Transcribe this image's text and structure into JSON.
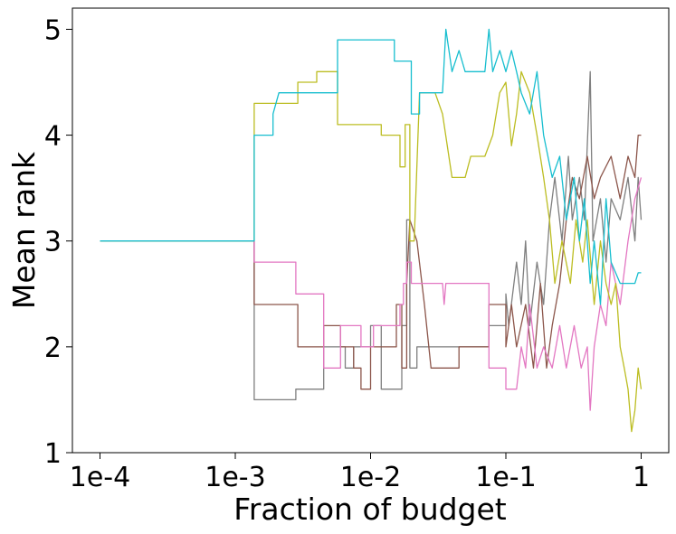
{
  "chart_data": {
    "type": "line",
    "title": "",
    "xlabel": "Fraction of budget",
    "ylabel": "Mean rank",
    "xscale": "log",
    "xlim": [
      6.25e-05,
      1.6
    ],
    "ylim": [
      1,
      5.2
    ],
    "x_ticks": [
      0.0001,
      0.001,
      0.01,
      0.1,
      1
    ],
    "x_tick_labels": [
      "1e-4",
      "1e-3",
      "1e-2",
      "1e-1",
      "1"
    ],
    "y_ticks": [
      1,
      2,
      3,
      4,
      5
    ],
    "y_tick_labels": [
      "1",
      "2",
      "3",
      "4",
      "5"
    ],
    "grid": false,
    "legend": "none",
    "series": [
      {
        "name": "gray",
        "color": "#7f7f7f",
        "points": [
          [
            0.0001,
            3
          ],
          [
            0.00138,
            3
          ],
          [
            0.00138,
            1.5
          ],
          [
            0.0028,
            1.5
          ],
          [
            0.0028,
            1.6
          ],
          [
            0.0045,
            1.6
          ],
          [
            0.0045,
            2.0
          ],
          [
            0.0065,
            2.0
          ],
          [
            0.0065,
            1.8
          ],
          [
            0.0075,
            1.8
          ],
          [
            0.0075,
            2.0
          ],
          [
            0.01,
            2.0
          ],
          [
            0.01,
            2.2
          ],
          [
            0.012,
            2.2
          ],
          [
            0.012,
            1.6
          ],
          [
            0.017,
            1.6
          ],
          [
            0.017,
            2.2
          ],
          [
            0.0185,
            2.2
          ],
          [
            0.0185,
            3.2
          ],
          [
            0.0195,
            3.2
          ],
          [
            0.0195,
            1.8
          ],
          [
            0.022,
            1.8
          ],
          [
            0.022,
            2.0
          ],
          [
            0.075,
            2.0
          ],
          [
            0.075,
            2.2
          ],
          [
            0.1,
            2.2
          ],
          [
            0.1,
            2.5
          ],
          [
            0.105,
            2.2
          ],
          [
            0.12,
            2.8
          ],
          [
            0.13,
            2.4
          ],
          [
            0.14,
            3.0
          ],
          [
            0.15,
            2.2
          ],
          [
            0.17,
            2.8
          ],
          [
            0.19,
            2.4
          ],
          [
            0.21,
            3.2
          ],
          [
            0.23,
            3.6
          ],
          [
            0.26,
            3.0
          ],
          [
            0.29,
            3.8
          ],
          [
            0.31,
            3.2
          ],
          [
            0.35,
            3.6
          ],
          [
            0.38,
            3.2
          ],
          [
            0.42,
            4.6
          ],
          [
            0.44,
            3.0
          ],
          [
            0.5,
            3.4
          ],
          [
            0.55,
            2.8
          ],
          [
            0.6,
            3.4
          ],
          [
            0.7,
            3.2
          ],
          [
            0.8,
            3.6
          ],
          [
            0.9,
            3.0
          ],
          [
            0.95,
            3.6
          ],
          [
            1,
            3.2
          ]
        ]
      },
      {
        "name": "brown",
        "color": "#8c564b",
        "points": [
          [
            0.0001,
            3
          ],
          [
            0.00138,
            3
          ],
          [
            0.00138,
            2.4
          ],
          [
            0.0029,
            2.4
          ],
          [
            0.0029,
            2.0
          ],
          [
            0.0045,
            2.0
          ],
          [
            0.0045,
            2.2
          ],
          [
            0.006,
            2.2
          ],
          [
            0.006,
            2.0
          ],
          [
            0.0075,
            2.0
          ],
          [
            0.0075,
            1.8
          ],
          [
            0.0085,
            1.8
          ],
          [
            0.0085,
            1.6
          ],
          [
            0.01,
            1.6
          ],
          [
            0.01,
            2.0
          ],
          [
            0.0155,
            2.0
          ],
          [
            0.0155,
            2.4
          ],
          [
            0.017,
            2.4
          ],
          [
            0.017,
            1.8
          ],
          [
            0.0185,
            1.8
          ],
          [
            0.0185,
            2.6
          ],
          [
            0.0195,
            3.2
          ],
          [
            0.022,
            3.0
          ],
          [
            0.025,
            2.4
          ],
          [
            0.028,
            1.8
          ],
          [
            0.045,
            1.8
          ],
          [
            0.045,
            2.0
          ],
          [
            0.075,
            2.0
          ],
          [
            0.075,
            2.4
          ],
          [
            0.1,
            2.4
          ],
          [
            0.1,
            2.0
          ],
          [
            0.11,
            2.4
          ],
          [
            0.12,
            2.0
          ],
          [
            0.14,
            2.4
          ],
          [
            0.16,
            1.8
          ],
          [
            0.18,
            2.6
          ],
          [
            0.2,
            1.8
          ],
          [
            0.22,
            2.2
          ],
          [
            0.25,
            2.6
          ],
          [
            0.28,
            3.2
          ],
          [
            0.31,
            3.6
          ],
          [
            0.35,
            3.4
          ],
          [
            0.4,
            3.8
          ],
          [
            0.45,
            3.4
          ],
          [
            0.5,
            3.6
          ],
          [
            0.6,
            3.8
          ],
          [
            0.7,
            3.4
          ],
          [
            0.8,
            3.8
          ],
          [
            0.9,
            3.6
          ],
          [
            0.95,
            4.0
          ],
          [
            1,
            4.0
          ]
        ]
      },
      {
        "name": "pink",
        "color": "#e377c2",
        "points": [
          [
            0.0001,
            3
          ],
          [
            0.00138,
            3
          ],
          [
            0.00138,
            2.8
          ],
          [
            0.0028,
            2.8
          ],
          [
            0.0028,
            2.5
          ],
          [
            0.0045,
            2.5
          ],
          [
            0.0045,
            1.8
          ],
          [
            0.006,
            1.8
          ],
          [
            0.006,
            2.2
          ],
          [
            0.0085,
            2.2
          ],
          [
            0.0085,
            2.0
          ],
          [
            0.0105,
            2.0
          ],
          [
            0.0105,
            2.2
          ],
          [
            0.0165,
            2.2
          ],
          [
            0.0165,
            2.4
          ],
          [
            0.0175,
            2.4
          ],
          [
            0.0175,
            2.6
          ],
          [
            0.0185,
            2.6
          ],
          [
            0.0185,
            2.8
          ],
          [
            0.02,
            2.8
          ],
          [
            0.02,
            2.6
          ],
          [
            0.034,
            2.6
          ],
          [
            0.035,
            2.4
          ],
          [
            0.036,
            2.6
          ],
          [
            0.075,
            2.6
          ],
          [
            0.075,
            1.8
          ],
          [
            0.1,
            1.8
          ],
          [
            0.1,
            1.6
          ],
          [
            0.12,
            1.6
          ],
          [
            0.13,
            2.0
          ],
          [
            0.14,
            1.8
          ],
          [
            0.15,
            2.4
          ],
          [
            0.17,
            1.8
          ],
          [
            0.19,
            2.0
          ],
          [
            0.22,
            1.8
          ],
          [
            0.25,
            2.2
          ],
          [
            0.28,
            1.8
          ],
          [
            0.32,
            2.2
          ],
          [
            0.36,
            1.8
          ],
          [
            0.4,
            2.0
          ],
          [
            0.42,
            1.4
          ],
          [
            0.45,
            2.0
          ],
          [
            0.5,
            2.4
          ],
          [
            0.55,
            2.2
          ],
          [
            0.6,
            2.8
          ],
          [
            0.7,
            2.4
          ],
          [
            0.8,
            3.0
          ],
          [
            0.9,
            3.4
          ],
          [
            1,
            3.6
          ]
        ]
      },
      {
        "name": "olive",
        "color": "#bcbd22",
        "points": [
          [
            0.0001,
            3
          ],
          [
            0.00138,
            3
          ],
          [
            0.00138,
            4.3
          ],
          [
            0.0029,
            4.3
          ],
          [
            0.0029,
            4.5
          ],
          [
            0.004,
            4.5
          ],
          [
            0.004,
            4.6
          ],
          [
            0.0057,
            4.6
          ],
          [
            0.0057,
            4.1
          ],
          [
            0.012,
            4.1
          ],
          [
            0.012,
            4.0
          ],
          [
            0.0165,
            4.0
          ],
          [
            0.0165,
            3.7
          ],
          [
            0.018,
            3.7
          ],
          [
            0.018,
            4.1
          ],
          [
            0.0195,
            4.1
          ],
          [
            0.0195,
            3.0
          ],
          [
            0.021,
            3.0
          ],
          [
            0.023,
            4.4
          ],
          [
            0.03,
            4.4
          ],
          [
            0.034,
            4.2
          ],
          [
            0.04,
            3.6
          ],
          [
            0.05,
            3.6
          ],
          [
            0.055,
            3.8
          ],
          [
            0.07,
            3.8
          ],
          [
            0.08,
            4.0
          ],
          [
            0.09,
            4.4
          ],
          [
            0.1,
            4.5
          ],
          [
            0.11,
            3.9
          ],
          [
            0.12,
            4.2
          ],
          [
            0.13,
            4.6
          ],
          [
            0.15,
            4.4
          ],
          [
            0.17,
            4.0
          ],
          [
            0.19,
            3.6
          ],
          [
            0.21,
            3.2
          ],
          [
            0.23,
            2.6
          ],
          [
            0.26,
            3.0
          ],
          [
            0.3,
            2.6
          ],
          [
            0.33,
            3.2
          ],
          [
            0.37,
            2.8
          ],
          [
            0.4,
            3.2
          ],
          [
            0.45,
            2.4
          ],
          [
            0.5,
            3.0
          ],
          [
            0.55,
            2.6
          ],
          [
            0.6,
            2.4
          ],
          [
            0.65,
            2.6
          ],
          [
            0.7,
            2.0
          ],
          [
            0.75,
            1.8
          ],
          [
            0.8,
            1.6
          ],
          [
            0.85,
            1.2
          ],
          [
            0.9,
            1.4
          ],
          [
            0.95,
            1.8
          ],
          [
            1,
            1.6
          ]
        ]
      },
      {
        "name": "cyan",
        "color": "#17becf",
        "points": [
          [
            0.0001,
            3
          ],
          [
            0.00138,
            3
          ],
          [
            0.00138,
            4.0
          ],
          [
            0.0019,
            4.0
          ],
          [
            0.0019,
            4.2
          ],
          [
            0.0021,
            4.4
          ],
          [
            0.0057,
            4.4
          ],
          [
            0.0057,
            4.9
          ],
          [
            0.015,
            4.9
          ],
          [
            0.015,
            4.7
          ],
          [
            0.02,
            4.7
          ],
          [
            0.02,
            4.2
          ],
          [
            0.023,
            4.2
          ],
          [
            0.023,
            4.4
          ],
          [
            0.034,
            4.4
          ],
          [
            0.036,
            5.0
          ],
          [
            0.04,
            4.6
          ],
          [
            0.045,
            4.8
          ],
          [
            0.05,
            4.6
          ],
          [
            0.07,
            4.6
          ],
          [
            0.075,
            5.0
          ],
          [
            0.08,
            4.6
          ],
          [
            0.09,
            4.8
          ],
          [
            0.1,
            4.6
          ],
          [
            0.11,
            4.8
          ],
          [
            0.12,
            4.6
          ],
          [
            0.13,
            4.4
          ],
          [
            0.15,
            4.2
          ],
          [
            0.17,
            4.6
          ],
          [
            0.19,
            4.0
          ],
          [
            0.22,
            3.6
          ],
          [
            0.25,
            3.8
          ],
          [
            0.28,
            3.2
          ],
          [
            0.32,
            3.6
          ],
          [
            0.35,
            3.0
          ],
          [
            0.38,
            3.4
          ],
          [
            0.42,
            2.6
          ],
          [
            0.45,
            3.0
          ],
          [
            0.5,
            2.4
          ],
          [
            0.55,
            3.4
          ],
          [
            0.6,
            2.8
          ],
          [
            0.7,
            2.6
          ],
          [
            0.8,
            2.6
          ],
          [
            0.9,
            2.6
          ],
          [
            0.95,
            2.7
          ],
          [
            1,
            2.7
          ]
        ]
      }
    ]
  }
}
